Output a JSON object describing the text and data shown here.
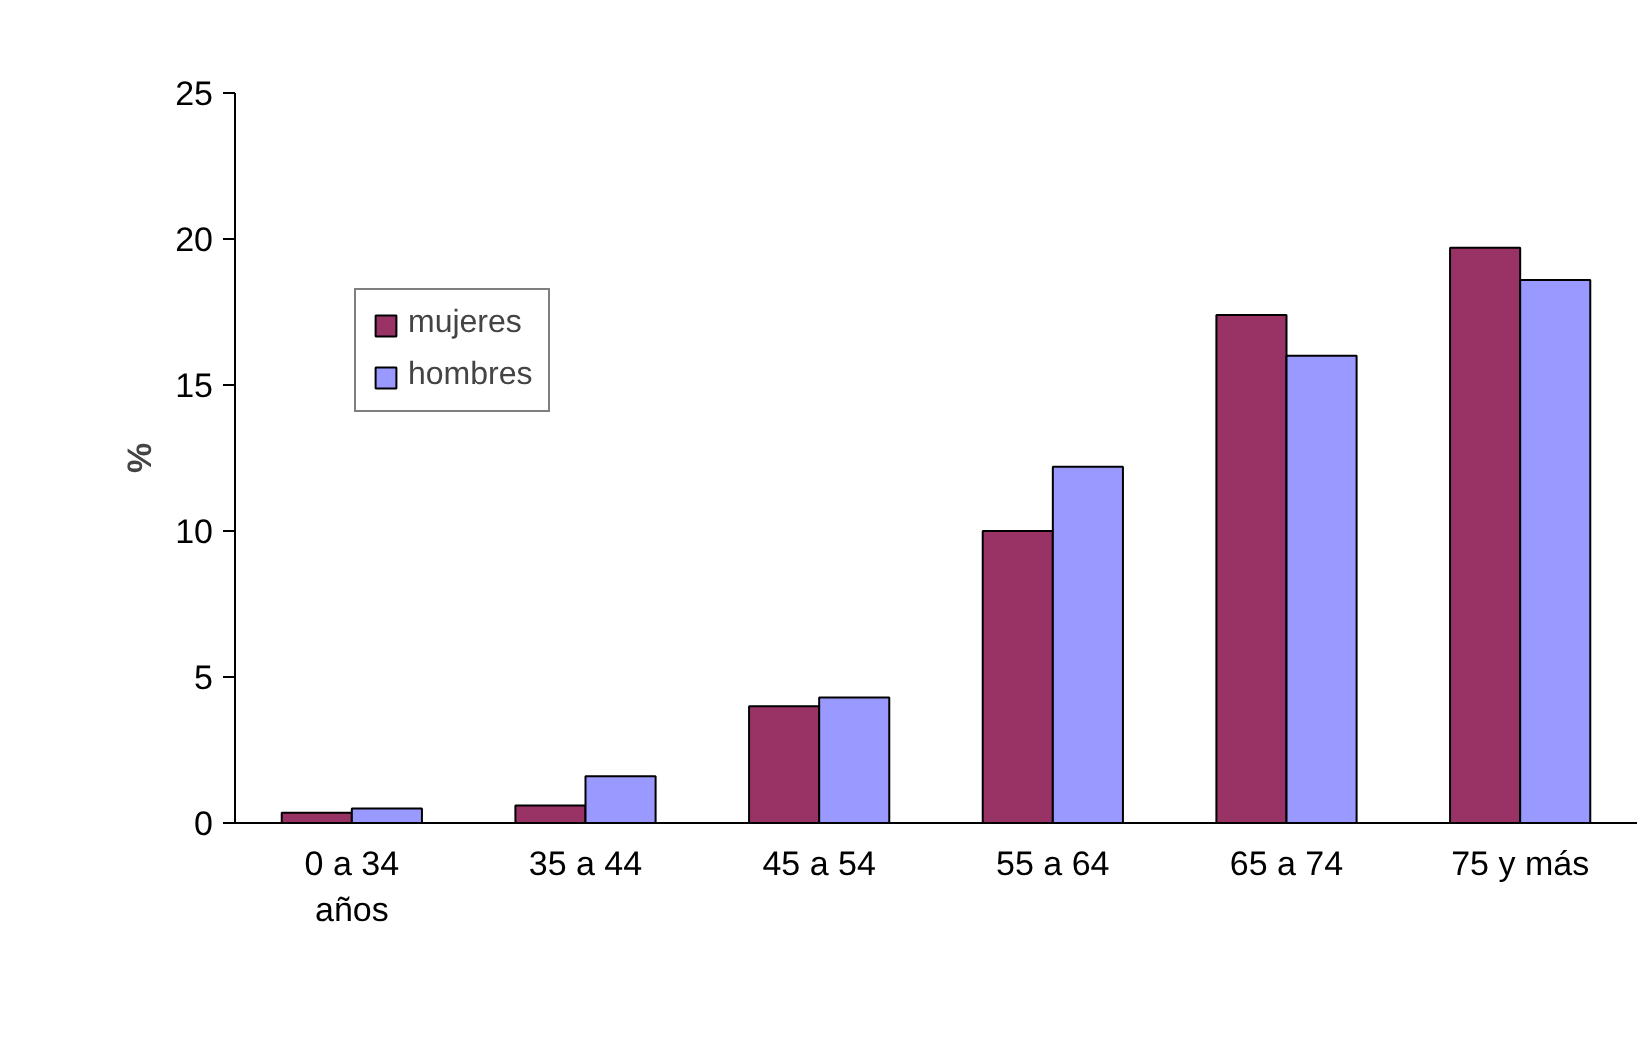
{
  "chart_data": {
    "type": "bar",
    "ylabel": "%",
    "categories": [
      "0 a 34 años",
      "35 a 44",
      "45 a 54",
      "55 a 64",
      "65 a 74",
      "75 y más"
    ],
    "series": [
      {
        "name": "mujeres",
        "color": "#993366",
        "values": [
          0.35,
          0.6,
          4.0,
          10.0,
          17.4,
          19.7
        ]
      },
      {
        "name": "hombres",
        "color": "#9999ff",
        "values": [
          0.5,
          1.6,
          4.3,
          12.2,
          16.0,
          18.6
        ]
      }
    ],
    "ylim": [
      0,
      25
    ],
    "yticks": [
      0,
      5,
      10,
      15,
      20,
      25
    ],
    "grid": false,
    "legend": "top left"
  }
}
